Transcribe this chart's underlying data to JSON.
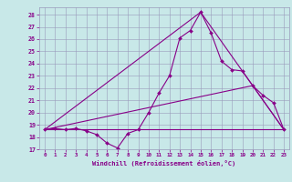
{
  "title": "",
  "xlabel": "Windchill (Refroidissement éolien,°C)",
  "xlim": [
    -0.5,
    23.5
  ],
  "ylim": [
    17,
    28.6
  ],
  "yticks": [
    17,
    18,
    19,
    20,
    21,
    22,
    23,
    24,
    25,
    26,
    27,
    28
  ],
  "xticks": [
    0,
    1,
    2,
    3,
    4,
    5,
    6,
    7,
    8,
    9,
    10,
    11,
    12,
    13,
    14,
    15,
    16,
    17,
    18,
    19,
    20,
    21,
    22,
    23
  ],
  "bg_color": "#c8e8e8",
  "line_color": "#880088",
  "grid_color": "#9999bb",
  "line1_x": [
    0,
    1,
    2,
    3,
    4,
    5,
    6,
    7,
    8,
    9,
    10,
    11,
    12,
    13,
    14,
    15,
    16,
    17,
    18,
    19,
    20,
    21,
    22,
    23
  ],
  "line1_y": [
    18.6,
    18.7,
    18.6,
    18.7,
    18.5,
    18.2,
    17.5,
    17.1,
    18.3,
    18.6,
    20.0,
    21.6,
    23.0,
    26.1,
    26.7,
    28.2,
    26.5,
    24.2,
    23.5,
    23.4,
    22.2,
    21.4,
    20.8,
    18.6
  ],
  "line2_x": [
    0,
    23
  ],
  "line2_y": [
    18.6,
    18.6
  ],
  "line3_x": [
    0,
    15,
    23
  ],
  "line3_y": [
    18.6,
    28.2,
    18.6
  ],
  "line4_x": [
    0,
    20,
    23
  ],
  "line4_y": [
    18.6,
    22.2,
    18.6
  ]
}
